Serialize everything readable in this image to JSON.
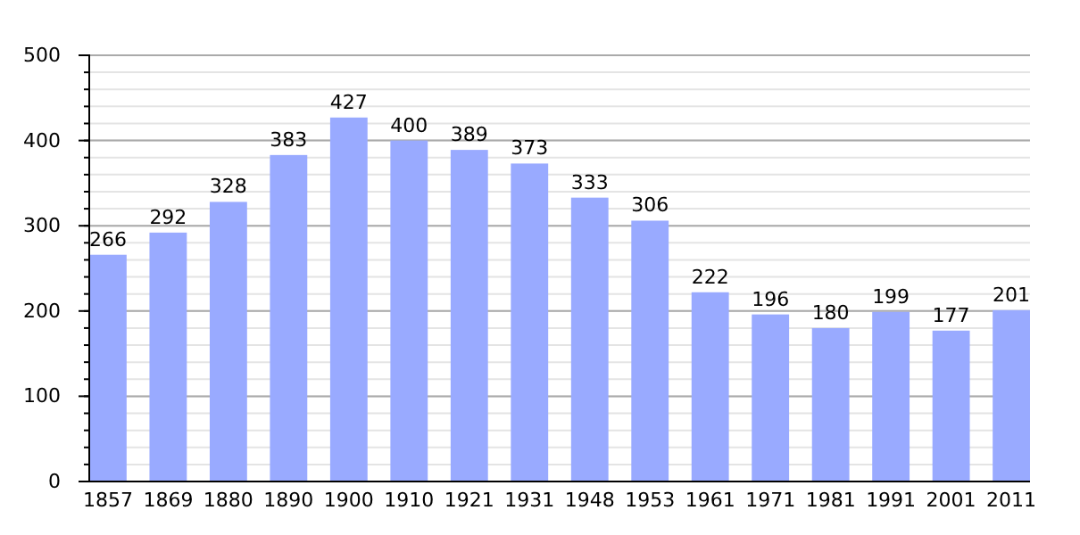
{
  "chart_data": {
    "type": "bar",
    "categories": [
      "1857",
      "1869",
      "1880",
      "1890",
      "1900",
      "1910",
      "1921",
      "1931",
      "1948",
      "1953",
      "1961",
      "1971",
      "1981",
      "1991",
      "2001",
      "2011"
    ],
    "values": [
      266,
      292,
      328,
      383,
      427,
      400,
      389,
      373,
      333,
      306,
      222,
      196,
      180,
      199,
      177,
      201
    ],
    "color": "#99aaff",
    "ylim": [
      0,
      500
    ],
    "yticks": [
      0,
      100,
      200,
      300,
      400,
      500
    ],
    "grid": "y",
    "data_labels": true
  }
}
